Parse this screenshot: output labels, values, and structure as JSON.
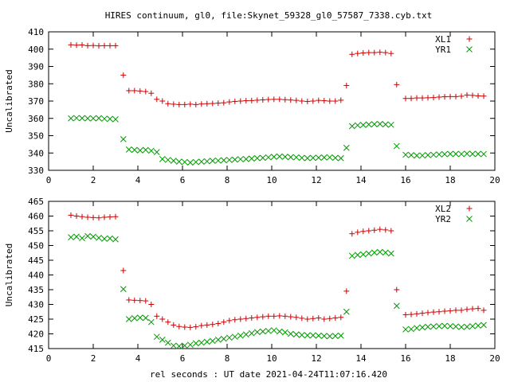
{
  "title": "HIRES continuum, gl0, file:Skynet_59328_gl0_57587_7338.cyb.txt",
  "footer_xlabel": "rel seconds : UT date 2021-04-24T11:07:16.420",
  "colors": {
    "plus": "#cc0000",
    "cross": "#009900",
    "axis": "#000000"
  },
  "chart_data": [
    {
      "type": "scatter",
      "title": "",
      "xlabel": "",
      "ylabel": "Uncalibrated",
      "xlim": [
        0,
        20
      ],
      "ylim": [
        330,
        410
      ],
      "xticks": [
        0,
        2,
        4,
        6,
        8,
        10,
        12,
        14,
        16,
        18,
        20
      ],
      "yticks": [
        330,
        340,
        350,
        360,
        370,
        380,
        390,
        400,
        410
      ],
      "grid": false,
      "legend": "top-right",
      "series": [
        {
          "name": "XL1",
          "marker": "plus",
          "x": [
            1.0,
            1.25,
            1.5,
            1.75,
            2.0,
            2.25,
            2.5,
            2.75,
            3.0,
            3.35,
            3.6,
            3.85,
            4.1,
            4.35,
            4.6,
            4.85,
            5.1,
            5.35,
            5.6,
            5.85,
            6.1,
            6.35,
            6.6,
            6.85,
            7.1,
            7.35,
            7.6,
            7.85,
            8.1,
            8.35,
            8.6,
            8.85,
            9.1,
            9.35,
            9.6,
            9.85,
            10.1,
            10.35,
            10.6,
            10.85,
            11.1,
            11.35,
            11.6,
            11.85,
            12.1,
            12.35,
            12.6,
            12.85,
            13.1,
            13.35,
            13.6,
            13.85,
            14.1,
            14.35,
            14.6,
            14.85,
            15.1,
            15.35,
            15.6,
            16.0,
            16.25,
            16.5,
            16.75,
            17.0,
            17.25,
            17.5,
            17.75,
            18.0,
            18.25,
            18.5,
            18.75,
            19.0,
            19.25,
            19.5
          ],
          "y": [
            402.5,
            402.3,
            402.4,
            402.0,
            402.1,
            401.9,
            402.0,
            402.0,
            402.0,
            385.0,
            376.0,
            376.0,
            375.8,
            375.5,
            374.5,
            371.0,
            370.0,
            368.5,
            368.2,
            368.0,
            368.0,
            368.2,
            368.0,
            368.3,
            368.5,
            368.6,
            368.8,
            369.0,
            369.5,
            369.8,
            370.0,
            370.2,
            370.3,
            370.5,
            370.7,
            370.9,
            371.0,
            371.0,
            370.8,
            370.6,
            370.4,
            370.0,
            369.8,
            370.0,
            370.4,
            370.2,
            370.0,
            370.0,
            370.5,
            379.0,
            397.0,
            397.5,
            397.8,
            398.0,
            398.0,
            398.2,
            398.0,
            397.5,
            379.5,
            371.5,
            371.5,
            371.8,
            371.8,
            371.9,
            372.0,
            372.3,
            372.5,
            372.6,
            372.6,
            372.8,
            373.5,
            373.3,
            373.0,
            372.9
          ]
        },
        {
          "name": "YR1",
          "marker": "cross",
          "x": [
            1.0,
            1.25,
            1.5,
            1.75,
            2.0,
            2.25,
            2.5,
            2.75,
            3.0,
            3.35,
            3.6,
            3.85,
            4.1,
            4.35,
            4.6,
            4.85,
            5.1,
            5.35,
            5.6,
            5.85,
            6.1,
            6.35,
            6.6,
            6.85,
            7.1,
            7.35,
            7.6,
            7.85,
            8.1,
            8.35,
            8.6,
            8.85,
            9.1,
            9.35,
            9.6,
            9.85,
            10.1,
            10.35,
            10.6,
            10.85,
            11.1,
            11.35,
            11.6,
            11.85,
            12.1,
            12.35,
            12.6,
            12.85,
            13.1,
            13.35,
            13.6,
            13.85,
            14.1,
            14.35,
            14.6,
            14.85,
            15.1,
            15.35,
            15.6,
            16.0,
            16.25,
            16.5,
            16.75,
            17.0,
            17.25,
            17.5,
            17.75,
            18.0,
            18.25,
            18.5,
            18.75,
            19.0,
            19.25,
            19.5
          ],
          "y": [
            360.0,
            360.2,
            360.1,
            360.0,
            360.0,
            360.1,
            359.8,
            359.7,
            359.5,
            348.0,
            342.0,
            341.8,
            341.5,
            341.8,
            341.3,
            340.5,
            336.5,
            336.0,
            335.5,
            335.0,
            334.8,
            334.5,
            334.8,
            335.0,
            335.2,
            335.5,
            335.6,
            335.8,
            336.0,
            336.2,
            336.4,
            336.5,
            336.8,
            337.0,
            337.2,
            337.5,
            337.8,
            338.0,
            337.8,
            337.6,
            337.5,
            337.2,
            337.0,
            337.2,
            337.3,
            337.4,
            337.5,
            337.2,
            337.0,
            343.0,
            355.5,
            356.0,
            356.2,
            356.5,
            356.6,
            356.8,
            356.5,
            356.3,
            344.0,
            339.0,
            338.8,
            338.5,
            338.6,
            338.8,
            339.0,
            339.2,
            339.3,
            339.5,
            339.5,
            339.4,
            339.6,
            339.5,
            339.5,
            339.4
          ]
        }
      ]
    },
    {
      "type": "scatter",
      "title": "",
      "xlabel": "rel seconds : UT date 2021-04-24T11:07:16.420",
      "ylabel": "Uncalibrated",
      "xlim": [
        0,
        20
      ],
      "ylim": [
        415,
        465
      ],
      "xticks": [
        0,
        2,
        4,
        6,
        8,
        10,
        12,
        14,
        16,
        18,
        20
      ],
      "yticks": [
        415,
        420,
        425,
        430,
        435,
        440,
        445,
        450,
        455,
        460,
        465
      ],
      "grid": false,
      "legend": "top-right",
      "series": [
        {
          "name": "XL2",
          "marker": "plus",
          "x": [
            1.0,
            1.25,
            1.5,
            1.75,
            2.0,
            2.25,
            2.5,
            2.75,
            3.0,
            3.35,
            3.6,
            3.85,
            4.1,
            4.35,
            4.6,
            4.85,
            5.1,
            5.35,
            5.6,
            5.85,
            6.1,
            6.35,
            6.6,
            6.85,
            7.1,
            7.35,
            7.6,
            7.85,
            8.1,
            8.35,
            8.6,
            8.85,
            9.1,
            9.35,
            9.6,
            9.85,
            10.1,
            10.35,
            10.6,
            10.85,
            11.1,
            11.35,
            11.6,
            11.85,
            12.1,
            12.35,
            12.6,
            12.85,
            13.1,
            13.35,
            13.6,
            13.85,
            14.1,
            14.35,
            14.6,
            14.85,
            15.1,
            15.35,
            15.6,
            16.0,
            16.25,
            16.5,
            16.75,
            17.0,
            17.25,
            17.5,
            17.75,
            18.0,
            18.25,
            18.5,
            18.75,
            19.0,
            19.25,
            19.5
          ],
          "y": [
            460.3,
            460.0,
            459.8,
            459.6,
            459.5,
            459.4,
            459.6,
            459.7,
            459.8,
            441.5,
            431.5,
            431.4,
            431.3,
            431.2,
            430.0,
            426.0,
            425.0,
            424.0,
            423.0,
            422.5,
            422.3,
            422.2,
            422.4,
            422.8,
            423.0,
            423.2,
            423.5,
            424.0,
            424.5,
            424.8,
            425.0,
            425.2,
            425.4,
            425.6,
            425.8,
            426.0,
            426.0,
            426.1,
            426.0,
            425.8,
            425.6,
            425.3,
            425.0,
            425.2,
            425.4,
            425.0,
            425.2,
            425.4,
            425.6,
            434.5,
            454.0,
            454.5,
            454.8,
            455.0,
            455.2,
            455.5,
            455.3,
            455.0,
            435.0,
            426.5,
            426.6,
            426.8,
            427.0,
            427.2,
            427.4,
            427.5,
            427.7,
            427.8,
            428.0,
            428.0,
            428.3,
            428.5,
            428.6,
            428.0
          ]
        },
        {
          "name": "YR2",
          "marker": "cross",
          "x": [
            1.0,
            1.25,
            1.5,
            1.75,
            2.0,
            2.25,
            2.5,
            2.75,
            3.0,
            3.35,
            3.6,
            3.85,
            4.1,
            4.35,
            4.6,
            4.85,
            5.1,
            5.35,
            5.6,
            5.85,
            6.1,
            6.35,
            6.6,
            6.85,
            7.1,
            7.35,
            7.6,
            7.85,
            8.1,
            8.35,
            8.6,
            8.85,
            9.1,
            9.35,
            9.6,
            9.85,
            10.1,
            10.35,
            10.6,
            10.85,
            11.1,
            11.35,
            11.6,
            11.85,
            12.1,
            12.35,
            12.6,
            12.85,
            13.1,
            13.35,
            13.6,
            13.85,
            14.1,
            14.35,
            14.6,
            14.85,
            15.1,
            15.35,
            15.6,
            16.0,
            16.25,
            16.5,
            16.75,
            17.0,
            17.25,
            17.5,
            17.75,
            18.0,
            18.25,
            18.5,
            18.75,
            19.0,
            19.25,
            19.5
          ],
          "y": [
            452.8,
            453.0,
            452.5,
            453.2,
            453.0,
            452.6,
            452.3,
            452.4,
            452.1,
            435.2,
            425.0,
            425.3,
            425.5,
            425.4,
            424.0,
            419.0,
            418.0,
            417.0,
            416.0,
            415.8,
            416.0,
            416.3,
            416.8,
            417.0,
            417.3,
            417.6,
            418.0,
            418.3,
            418.7,
            419.0,
            419.4,
            419.8,
            420.2,
            420.6,
            420.8,
            421.0,
            421.2,
            420.8,
            420.5,
            420.0,
            419.8,
            419.6,
            419.5,
            419.5,
            419.4,
            419.3,
            419.2,
            419.3,
            419.4,
            427.5,
            446.5,
            446.8,
            447.0,
            447.3,
            447.6,
            447.8,
            447.6,
            447.3,
            429.5,
            421.5,
            421.6,
            422.0,
            422.2,
            422.4,
            422.5,
            422.6,
            422.7,
            422.6,
            422.5,
            422.3,
            422.4,
            422.6,
            422.8,
            423.0
          ]
        }
      ]
    }
  ]
}
